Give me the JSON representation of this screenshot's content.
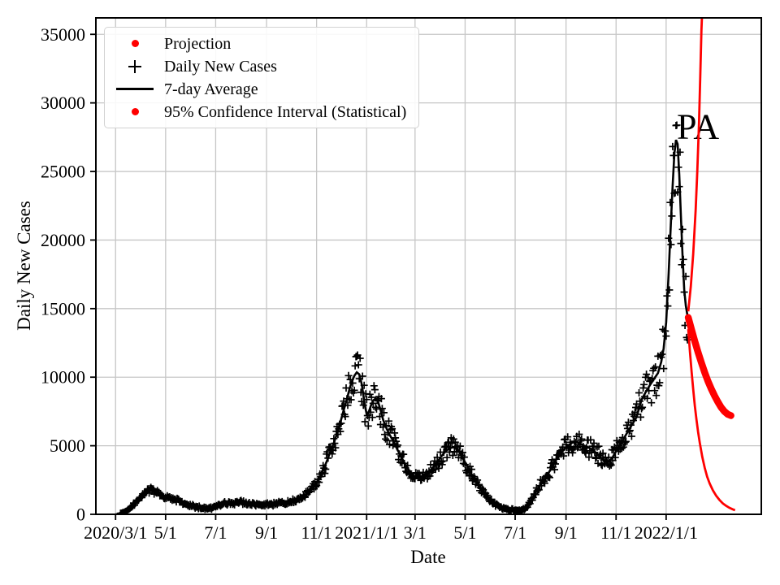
{
  "figure": {
    "legend": {
      "items": [
        {
          "label": "Projection",
          "marker": "red-dot",
          "icon": "projection-dot-icon"
        },
        {
          "label": "Daily New Cases",
          "marker": "black-plus",
          "icon": "plus-marker-icon"
        },
        {
          "label": "7-day Average",
          "marker": "black-line",
          "icon": "line-sample-icon"
        },
        {
          "label": "95% Confidence Interval (Statistical)",
          "marker": "red-dot",
          "icon": "ci-dot-icon"
        }
      ]
    }
  },
  "chart_data": {
    "type": "line",
    "title": "",
    "xlabel": "Date",
    "ylabel": "Daily New Cases",
    "x_unit": "days since 2020/3/1",
    "xlim": [
      -24,
      787
    ],
    "ylim": [
      0,
      36200
    ],
    "grid": true,
    "grid_color": "#c6c6c6",
    "legend_position": "upper left",
    "x_ticks": [
      {
        "label": "2020/3/1",
        "day": 0
      },
      {
        "label": "5/1",
        "day": 61
      },
      {
        "label": "7/1",
        "day": 122
      },
      {
        "label": "9/1",
        "day": 184
      },
      {
        "label": "11/1",
        "day": 245
      },
      {
        "label": "2021/1/1",
        "day": 306
      },
      {
        "label": "3/1",
        "day": 365
      },
      {
        "label": "5/1",
        "day": 426
      },
      {
        "label": "7/1",
        "day": 487
      },
      {
        "label": "9/1",
        "day": 549
      },
      {
        "label": "11/1",
        "day": 610
      },
      {
        "label": "2022/1/1",
        "day": 671
      }
    ],
    "y_ticks": [
      0,
      5000,
      10000,
      15000,
      20000,
      25000,
      30000,
      35000
    ],
    "annotation": {
      "text": "PA",
      "day": 684,
      "value": 27400,
      "font_px": 44
    },
    "series": [
      {
        "name": "7-day Average",
        "color": "#000000",
        "width": 2.6,
        "points": [
          [
            0,
            0
          ],
          [
            4,
            20
          ],
          [
            8,
            60
          ],
          [
            12,
            160
          ],
          [
            16,
            340
          ],
          [
            20,
            600
          ],
          [
            24,
            850
          ],
          [
            28,
            1060
          ],
          [
            32,
            1260
          ],
          [
            36,
            1460
          ],
          [
            40,
            1630
          ],
          [
            44,
            1740
          ],
          [
            48,
            1660
          ],
          [
            52,
            1530
          ],
          [
            56,
            1400
          ],
          [
            61,
            1280
          ],
          [
            66,
            1160
          ],
          [
            70,
            1060
          ],
          [
            75,
            1000
          ],
          [
            80,
            900
          ],
          [
            85,
            770
          ],
          [
            92,
            640
          ],
          [
            99,
            520
          ],
          [
            106,
            440
          ],
          [
            110,
            410
          ],
          [
            114,
            425
          ],
          [
            118,
            480
          ],
          [
            122,
            560
          ],
          [
            127,
            660
          ],
          [
            132,
            750
          ],
          [
            137,
            800
          ],
          [
            142,
            830
          ],
          [
            147,
            860
          ],
          [
            152,
            880
          ],
          [
            158,
            820
          ],
          [
            164,
            760
          ],
          [
            170,
            720
          ],
          [
            177,
            700
          ],
          [
            184,
            690
          ],
          [
            190,
            730
          ],
          [
            196,
            760
          ],
          [
            202,
            780
          ],
          [
            208,
            830
          ],
          [
            214,
            920
          ],
          [
            220,
            1030
          ],
          [
            226,
            1160
          ],
          [
            232,
            1420
          ],
          [
            238,
            1760
          ],
          [
            242,
            2060
          ],
          [
            246,
            2420
          ],
          [
            250,
            2860
          ],
          [
            254,
            3360
          ],
          [
            258,
            3960
          ],
          [
            262,
            4600
          ],
          [
            266,
            5200
          ],
          [
            270,
            5900
          ],
          [
            274,
            6700
          ],
          [
            278,
            7600
          ],
          [
            282,
            8400
          ],
          [
            285,
            9100
          ],
          [
            288,
            9700
          ],
          [
            291,
            10100
          ],
          [
            294,
            10350
          ],
          [
            297,
            10200
          ],
          [
            300,
            9500
          ],
          [
            302,
            8700
          ],
          [
            304,
            7900
          ],
          [
            306,
            7300
          ],
          [
            308,
            7360
          ],
          [
            311,
            7900
          ],
          [
            314,
            8300
          ],
          [
            317,
            8450
          ],
          [
            320,
            8200
          ],
          [
            323,
            7600
          ],
          [
            326,
            6900
          ],
          [
            330,
            6300
          ],
          [
            334,
            5800
          ],
          [
            338,
            5400
          ],
          [
            342,
            4900
          ],
          [
            347,
            4300
          ],
          [
            352,
            3760
          ],
          [
            357,
            3260
          ],
          [
            361,
            2960
          ],
          [
            365,
            2720
          ],
          [
            369,
            2650
          ],
          [
            373,
            2760
          ],
          [
            378,
            2950
          ],
          [
            383,
            3160
          ],
          [
            388,
            3500
          ],
          [
            393,
            3900
          ],
          [
            398,
            4300
          ],
          [
            403,
            4650
          ],
          [
            408,
            4830
          ],
          [
            412,
            4900
          ],
          [
            416,
            4780
          ],
          [
            420,
            4450
          ],
          [
            424,
            4000
          ],
          [
            428,
            3560
          ],
          [
            432,
            3120
          ],
          [
            436,
            2720
          ],
          [
            441,
            2220
          ],
          [
            446,
            1760
          ],
          [
            451,
            1360
          ],
          [
            456,
            1060
          ],
          [
            461,
            810
          ],
          [
            466,
            610
          ],
          [
            471,
            465
          ],
          [
            476,
            375
          ],
          [
            481,
            315
          ],
          [
            487,
            285
          ],
          [
            492,
            300
          ],
          [
            497,
            335
          ],
          [
            501,
            500
          ],
          [
            505,
            900
          ],
          [
            509,
            1300
          ],
          [
            513,
            1750
          ],
          [
            517,
            2100
          ],
          [
            521,
            2400
          ],
          [
            525,
            2750
          ],
          [
            529,
            3150
          ],
          [
            533,
            3600
          ],
          [
            537,
            3980
          ],
          [
            541,
            4280
          ],
          [
            545,
            4620
          ],
          [
            549,
            4880
          ],
          [
            553,
            5080
          ],
          [
            557,
            5230
          ],
          [
            561,
            5300
          ],
          [
            565,
            5180
          ],
          [
            569,
            5060
          ],
          [
            574,
            4940
          ],
          [
            578,
            4820
          ],
          [
            582,
            4660
          ],
          [
            586,
            4460
          ],
          [
            590,
            4220
          ],
          [
            594,
            3980
          ],
          [
            598,
            3800
          ],
          [
            602,
            3900
          ],
          [
            606,
            4180
          ],
          [
            610,
            4600
          ],
          [
            615,
            5100
          ],
          [
            620,
            5600
          ],
          [
            625,
            6100
          ],
          [
            630,
            6600
          ],
          [
            635,
            7100
          ],
          [
            641,
            8350
          ],
          [
            646,
            8900
          ],
          [
            651,
            9400
          ],
          [
            656,
            9850
          ],
          [
            661,
            10300
          ],
          [
            665,
            11100
          ],
          [
            668,
            12100
          ],
          [
            671,
            14000
          ],
          [
            674,
            17500
          ],
          [
            677,
            21500
          ],
          [
            679,
            24000
          ],
          [
            681,
            26300
          ],
          [
            683,
            27300
          ],
          [
            685,
            27000
          ],
          [
            687,
            24800
          ],
          [
            689,
            21800
          ],
          [
            691,
            18800
          ],
          [
            693,
            16400
          ],
          [
            695,
            15200
          ],
          [
            697,
            14500
          ]
        ]
      },
      {
        "name": "95% CI Upper",
        "color": "#ff0000",
        "width": 2.8,
        "points": [
          [
            698,
            14800
          ],
          [
            701,
            16600
          ],
          [
            704,
            19000
          ],
          [
            707,
            22200
          ],
          [
            709,
            25000
          ],
          [
            711,
            28500
          ],
          [
            712.5,
            31800
          ],
          [
            714,
            35300
          ],
          [
            715,
            36800
          ]
        ]
      },
      {
        "name": "95% CI Lower",
        "color": "#ff0000",
        "width": 2.8,
        "points": [
          [
            698,
            13500
          ],
          [
            700,
            11900
          ],
          [
            702,
            10400
          ],
          [
            704,
            9100
          ],
          [
            706,
            7900
          ],
          [
            708,
            6900
          ],
          [
            710,
            6000
          ],
          [
            712,
            5200
          ],
          [
            715,
            4200
          ],
          [
            718,
            3400
          ],
          [
            721,
            2750
          ],
          [
            724,
            2250
          ],
          [
            728,
            1750
          ],
          [
            732,
            1350
          ],
          [
            736,
            1050
          ],
          [
            740,
            800
          ],
          [
            744,
            620
          ],
          [
            748,
            480
          ],
          [
            752,
            370
          ],
          [
            755,
            300
          ]
        ]
      },
      {
        "name": "Projection",
        "color": "#ff0000",
        "width": 8.5,
        "cap": "round",
        "points": [
          [
            698,
            14350
          ],
          [
            702,
            13450
          ],
          [
            706,
            12600
          ],
          [
            710,
            11800
          ],
          [
            714,
            11050
          ],
          [
            718,
            10350
          ],
          [
            722,
            9700
          ],
          [
            726,
            9150
          ],
          [
            730,
            8650
          ],
          [
            734,
            8200
          ],
          [
            738,
            7800
          ],
          [
            742,
            7500
          ],
          [
            746,
            7300
          ],
          [
            750,
            7200
          ]
        ]
      }
    ],
    "scatter": {
      "name": "Daily New Cases",
      "marker": "+",
      "color": "#000000",
      "size": 9,
      "stroke": 1.7,
      "day_range": [
        6,
        697
      ],
      "rel_noise": 0.15,
      "abs_noise": 60,
      "seed": 9
    }
  }
}
